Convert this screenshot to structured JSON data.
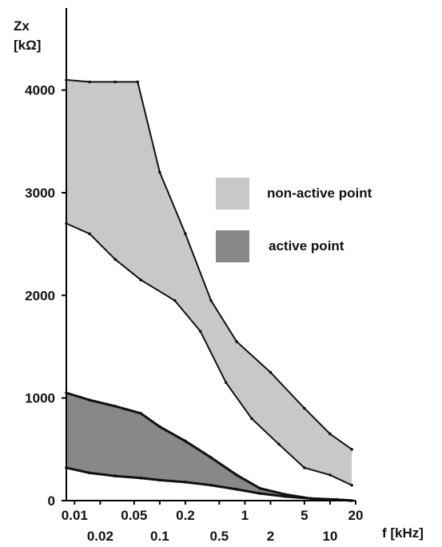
{
  "chart_data": {
    "type": "area",
    "xlabel": "f  [kHz]",
    "ylabel_line1": "Zx",
    "ylabel_line2": "[kΩ]",
    "x_scale": "log",
    "xlim": [
      0.008,
      20
    ],
    "ylim": [
      0,
      4800
    ],
    "x_ticks": [
      {
        "value": 0.01,
        "label": "0.01",
        "row": "upper"
      },
      {
        "value": 0.02,
        "label": "0.02",
        "row": "lower"
      },
      {
        "value": 0.05,
        "label": "0.05",
        "row": "upper"
      },
      {
        "value": 0.1,
        "label": "0.1",
        "row": "lower"
      },
      {
        "value": 0.2,
        "label": "0.2",
        "row": "upper"
      },
      {
        "value": 0.5,
        "label": "0.5",
        "row": "lower"
      },
      {
        "value": 1,
        "label": "1",
        "row": "upper"
      },
      {
        "value": 2,
        "label": "2",
        "row": "lower"
      },
      {
        "value": 5,
        "label": "5",
        "row": "upper"
      },
      {
        "value": 10,
        "label": "10",
        "row": "lower"
      },
      {
        "value": 20,
        "label": "20",
        "row": "upper"
      }
    ],
    "y_ticks": [
      {
        "value": 0,
        "label": "0"
      },
      {
        "value": 1000,
        "label": "1000"
      },
      {
        "value": 2000,
        "label": "2000"
      },
      {
        "value": 3000,
        "label": "3000"
      },
      {
        "value": 4000,
        "label": "4000"
      }
    ],
    "legend_position": "right",
    "series": [
      {
        "name": "non-active point",
        "color": "#c8c8c8",
        "upper": {
          "x": [
            0.008,
            0.015,
            0.03,
            0.055,
            0.1,
            0.2,
            0.4,
            0.8,
            2,
            5,
            10,
            18
          ],
          "y": [
            4100,
            4080,
            4080,
            4080,
            3200,
            2600,
            1950,
            1550,
            1250,
            900,
            650,
            500
          ]
        },
        "lower": {
          "x": [
            0.008,
            0.015,
            0.03,
            0.06,
            0.15,
            0.3,
            0.6,
            1.2,
            2.5,
            5,
            10,
            18
          ],
          "y": [
            2700,
            2600,
            2350,
            2150,
            1950,
            1650,
            1150,
            800,
            550,
            320,
            250,
            150
          ]
        }
      },
      {
        "name": "active point",
        "color": "#888888",
        "upper": {
          "x": [
            0.008,
            0.015,
            0.03,
            0.06,
            0.1,
            0.2,
            0.4,
            0.8,
            1.5,
            3,
            6,
            12,
            18
          ],
          "y": [
            1050,
            980,
            920,
            850,
            720,
            580,
            420,
            250,
            120,
            60,
            20,
            10,
            0
          ]
        },
        "lower": {
          "x": [
            0.008,
            0.015,
            0.03,
            0.06,
            0.1,
            0.2,
            0.4,
            0.8,
            1.5,
            3,
            6,
            12,
            18
          ],
          "y": [
            320,
            270,
            240,
            220,
            200,
            180,
            150,
            110,
            70,
            40,
            20,
            10,
            0
          ]
        }
      }
    ]
  }
}
